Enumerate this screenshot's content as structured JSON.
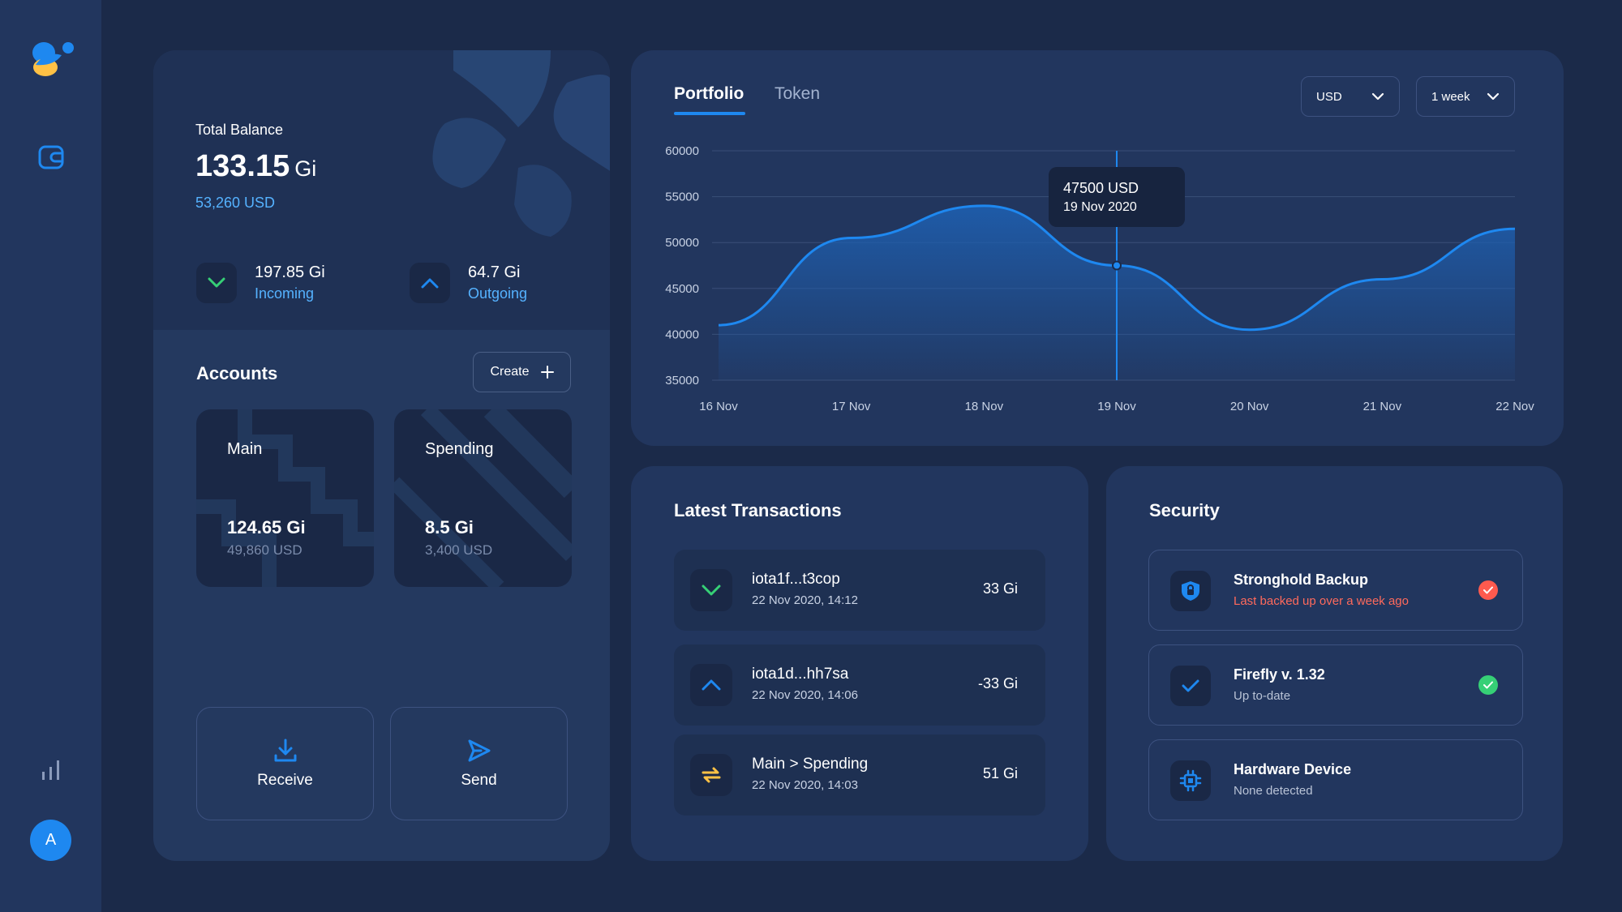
{
  "user": {
    "avatar_letter": "A"
  },
  "balance": {
    "label": "Total Balance",
    "amount": "133.15",
    "unit": "Gi",
    "usd": "53,260 USD",
    "incoming": {
      "value": "197.85 Gi",
      "label": "Incoming"
    },
    "outgoing": {
      "value": "64.7 Gi",
      "label": "Outgoing"
    }
  },
  "accounts": {
    "title": "Accounts",
    "create_label": "Create",
    "items": [
      {
        "name": "Main",
        "value": "124.65 Gi",
        "usd": "49,860 USD"
      },
      {
        "name": "Spending",
        "value": "8.5 Gi",
        "usd": "3,400 USD"
      }
    ]
  },
  "actions": {
    "receive_label": "Receive",
    "send_label": "Send"
  },
  "portfolio": {
    "tabs": [
      "Portfolio",
      "Token"
    ],
    "currency": "USD",
    "period": "1 week",
    "tooltip": {
      "value": "47500 USD",
      "date": "19 Nov 2020"
    }
  },
  "chart_data": {
    "type": "area",
    "x": [
      "16 Nov",
      "17 Nov",
      "18 Nov",
      "19 Nov",
      "20 Nov",
      "21 Nov",
      "22 Nov"
    ],
    "y_ticks": [
      60000,
      55000,
      50000,
      45000,
      40000,
      35000
    ],
    "ylim": [
      35000,
      60000
    ],
    "values": [
      41000,
      50500,
      54000,
      47500,
      40500,
      46000,
      51500
    ],
    "highlight": {
      "x": "19 Nov",
      "y": 47500
    },
    "grid": true,
    "colors": {
      "line": "#1e88f0",
      "fill": "#1e5fb0"
    }
  },
  "transactions": {
    "title": "Latest Transactions",
    "items": [
      {
        "icon": "arrow-down-icon",
        "name": "iota1f...t3cop",
        "date": "22 Nov 2020, 14:12",
        "amount": "33 Gi"
      },
      {
        "icon": "arrow-up-icon",
        "name": "iota1d...hh7sa",
        "date": "22 Nov 2020, 14:06",
        "amount": "-33 Gi"
      },
      {
        "icon": "transfer-icon",
        "name": "Main > Spending",
        "date": "22 Nov 2020, 14:03",
        "amount": "51 Gi"
      }
    ]
  },
  "security": {
    "title": "Security",
    "items": [
      {
        "name": "Stronghold Backup",
        "sub": "Last backed up over a week ago",
        "status": "warning"
      },
      {
        "name": "Firefly v. 1.32",
        "sub": "Up to-date",
        "status": "ok"
      },
      {
        "name": "Hardware Device",
        "sub": "None detected",
        "status": "none"
      }
    ]
  },
  "colors": {
    "accent": "#1e88f0",
    "success": "#36d076",
    "danger": "#ff5a4e",
    "warning": "#ffc145"
  }
}
